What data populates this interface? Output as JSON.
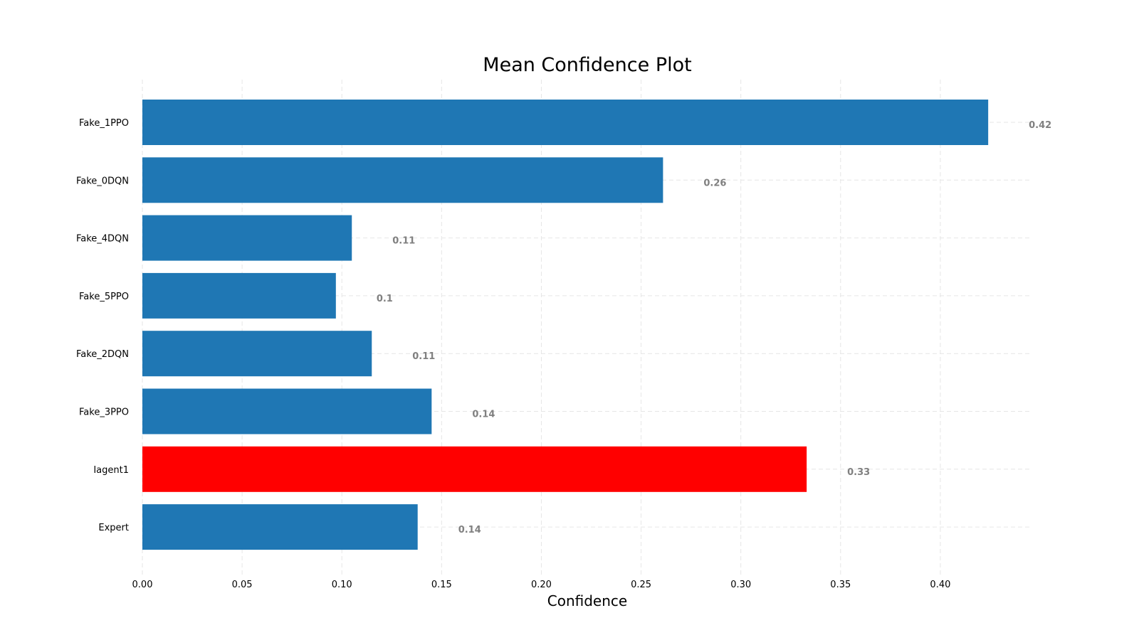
{
  "chart_data": {
    "type": "bar",
    "orientation": "horizontal",
    "title": "Mean Confidence Plot",
    "xlabel": "Confidence",
    "ylabel": "",
    "categories": [
      "Fake_1PPO",
      "Fake_0DQN",
      "Fake_4DQN",
      "Fake_5PPO",
      "Fake_2DQN",
      "Fake_3PPO",
      "Iagent1",
      "Expert"
    ],
    "values": [
      0.424,
      0.261,
      0.105,
      0.097,
      0.115,
      0.145,
      0.333,
      0.138
    ],
    "value_labels": [
      "0.42",
      "0.26",
      "0.11",
      "0.1",
      "0.11",
      "0.14",
      "0.33",
      "0.14"
    ],
    "bar_colors": [
      "#1f77b4",
      "#1f77b4",
      "#1f77b4",
      "#1f77b4",
      "#1f77b4",
      "#1f77b4",
      "#ff0000",
      "#1f77b4"
    ],
    "xlim": [
      0,
      0.445
    ],
    "xticks": [
      0.0,
      0.05,
      0.1,
      0.15,
      0.2,
      0.25,
      0.3,
      0.35,
      0.4
    ],
    "xtick_labels": [
      "0.00",
      "0.05",
      "0.10",
      "0.15",
      "0.20",
      "0.25",
      "0.30",
      "0.35",
      "0.40"
    ],
    "grid": true,
    "grid_style": "dashed",
    "legend": "none"
  }
}
